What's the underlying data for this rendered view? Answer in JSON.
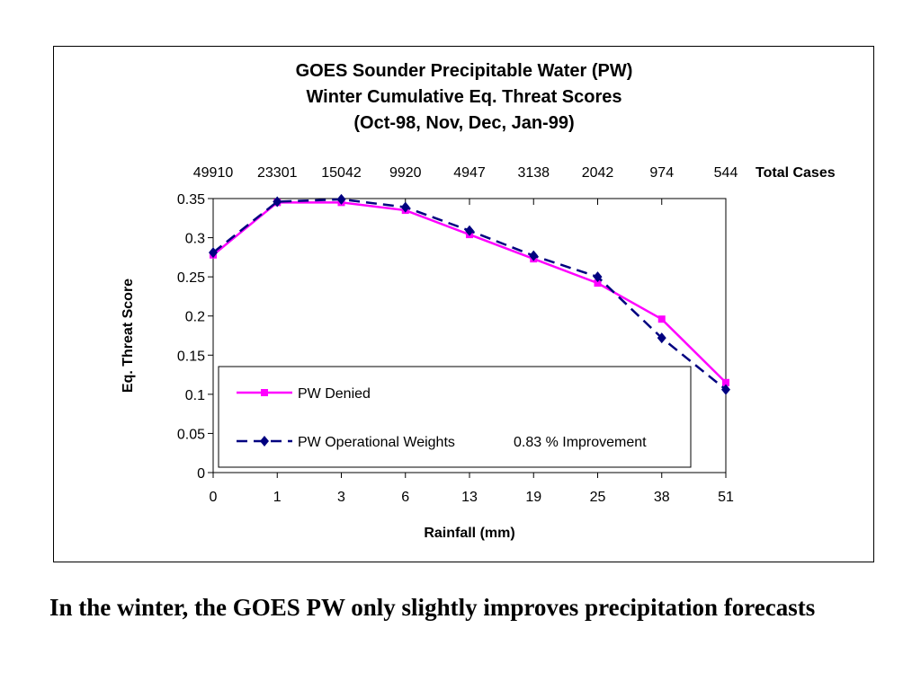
{
  "chart_data": {
    "type": "line",
    "title": [
      "GOES Sounder Precipitable Water (PW)",
      "Winter Cumulative Eq. Threat Scores",
      "(Oct-98, Nov, Dec, Jan-99)"
    ],
    "categories": [
      "0",
      "1",
      "3",
      "6",
      "13",
      "19",
      "25",
      "38",
      "51"
    ],
    "top_axis": {
      "labels": [
        "49910",
        "23301",
        "15042",
        "9920",
        "4947",
        "3138",
        "2042",
        "974",
        "544"
      ],
      "title": "Total Cases"
    },
    "xlabel": "Rainfall (mm)",
    "ylabel": "Eq. Threat Score",
    "ylim": [
      0,
      0.35
    ],
    "yticks": [
      "0",
      "0.05",
      "0.1",
      "0.15",
      "0.2",
      "0.25",
      "0.3",
      "0.35"
    ],
    "grid": false,
    "legend_position": "bottom-left inside plot",
    "series": [
      {
        "name": "PW Denied",
        "color": "#ff00ff",
        "marker": "square",
        "dash": "solid",
        "values": [
          0.278,
          0.345,
          0.345,
          0.335,
          0.304,
          0.273,
          0.242,
          0.196,
          0.115
        ]
      },
      {
        "name": "PW Operational Weights",
        "color": "#000080",
        "marker": "diamond",
        "dash": "dashed",
        "values": [
          0.281,
          0.346,
          0.349,
          0.339,
          0.309,
          0.277,
          0.25,
          0.172,
          0.106
        ]
      }
    ],
    "annotation": "0.83 % Improvement"
  },
  "caption": "In the winter, the GOES PW only slightly improves precipitation forecasts"
}
